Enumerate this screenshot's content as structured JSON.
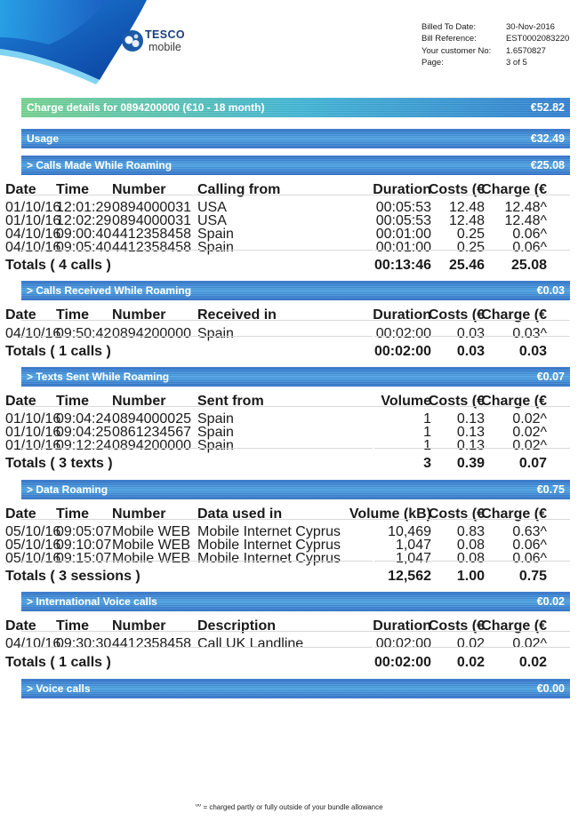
{
  "brand": {
    "name": "TESCO",
    "sub": "mobile"
  },
  "bill_info": [
    {
      "label": "Billed To Date:",
      "value": "30-Nov-2016"
    },
    {
      "label": "Bill Reference:",
      "value": "EST0002083220"
    },
    {
      "label": "Your customer No:",
      "value": "1.6570827"
    },
    {
      "label": "Page:",
      "value": "3 of 5"
    }
  ],
  "summary": {
    "charge_label": "Charge details for 0894200000 (€10 - 18 month)",
    "charge_amount": "€52.82",
    "usage_label": "Usage",
    "usage_amount": "€32.49"
  },
  "sections": [
    {
      "title": "> Calls Made While Roaming",
      "amount": "€25.08",
      "headers": [
        "Date",
        "Time",
        "Number",
        "Calling from",
        "Duration",
        "Costs (€",
        "Charge (€"
      ],
      "rows": [
        [
          "01/10/16",
          "12:01:29",
          "0894000031",
          "USA",
          "00:05:53",
          "12.48",
          "12.48^"
        ],
        [
          "01/10/16",
          "12:02:29",
          "0894000031",
          "USA",
          "00:05:53",
          "12.48",
          "12.48^"
        ],
        [
          "04/10/16",
          "09:00:40",
          "4412358458",
          "Spain",
          "00:01:00",
          "0.25",
          "0.06^"
        ],
        [
          "04/10/16",
          "09:05:40",
          "4412358458",
          "Spain",
          "00:01:00",
          "0.25",
          "0.06^"
        ]
      ],
      "totals": {
        "label": "Totals ( 4 calls )",
        "dur": "00:13:46",
        "cost": "25.46",
        "charge": "25.08"
      }
    },
    {
      "title": "> Calls Received While Roaming",
      "amount": "€0.03",
      "headers": [
        "Date",
        "Time",
        "Number",
        "Received in",
        "Duration",
        "Costs (€",
        "Charge (€"
      ],
      "rows": [
        [
          "04/10/16",
          "09:50:42",
          "0894200000",
          "Spain",
          "00:02:00",
          "0.03",
          "0.03^"
        ]
      ],
      "totals": {
        "label": "Totals ( 1 calls )",
        "dur": "00:02:00",
        "cost": "0.03",
        "charge": "0.03"
      }
    },
    {
      "title": "> Texts Sent While Roaming",
      "amount": "€0.07",
      "headers": [
        "Date",
        "Time",
        "Number",
        "Sent from",
        "Volume",
        "Costs (€",
        "Charge (€"
      ],
      "rows": [
        [
          "01/10/16",
          "09:04:24",
          "0894000025",
          "Spain",
          "1",
          "0.13",
          "0.02^"
        ],
        [
          "01/10/16",
          "09:04:25",
          "0861234567",
          "Spain",
          "1",
          "0.13",
          "0.02^"
        ],
        [
          "01/10/16",
          "09:12:24",
          "0894200000",
          "Spain",
          "1",
          "0.13",
          "0.02^"
        ]
      ],
      "totals": {
        "label": "Totals ( 3 texts )",
        "dur": "3",
        "cost": "0.39",
        "charge": "0.07"
      }
    },
    {
      "title": "> Data Roaming",
      "amount": "€0.75",
      "headers": [
        "Date",
        "Time",
        "Number",
        "Data used in",
        "Volume (kB)",
        "Costs (€",
        "Charge (€"
      ],
      "rows": [
        [
          "05/10/16",
          "09:05:07",
          "Mobile WEB",
          "Mobile Internet Cyprus",
          "10,469",
          "0.83",
          "0.63^"
        ],
        [
          "05/10/16",
          "09:10:07",
          "Mobile WEB",
          "Mobile Internet Cyprus",
          "1,047",
          "0.08",
          "0.06^"
        ],
        [
          "05/10/16",
          "09:15:07",
          "Mobile WEB",
          "Mobile Internet Cyprus",
          "1,047",
          "0.08",
          "0.06^"
        ]
      ],
      "totals": {
        "label": "Totals ( 3 sessions )",
        "dur": "12,562",
        "cost": "1.00",
        "charge": "0.75"
      }
    },
    {
      "title": "> International Voice calls",
      "amount": "€0.02",
      "headers": [
        "Date",
        "Time",
        "Number",
        "Description",
        "Duration",
        "Costs (€",
        "Charge (€"
      ],
      "rows": [
        [
          "04/10/16",
          "09:30:30",
          "4412358458",
          "Call UK Landline",
          "00:02:00",
          "0.02",
          "0.02^"
        ]
      ],
      "totals": {
        "label": "Totals ( 1 calls )",
        "dur": "00:02:00",
        "cost": "0.02",
        "charge": "0.02"
      }
    },
    {
      "title": "> Voice calls",
      "amount": "€0.00",
      "headers": [],
      "rows": [],
      "totals": null
    }
  ],
  "footnote": "'^' = charged partly or fully outside of your bundle allowance"
}
